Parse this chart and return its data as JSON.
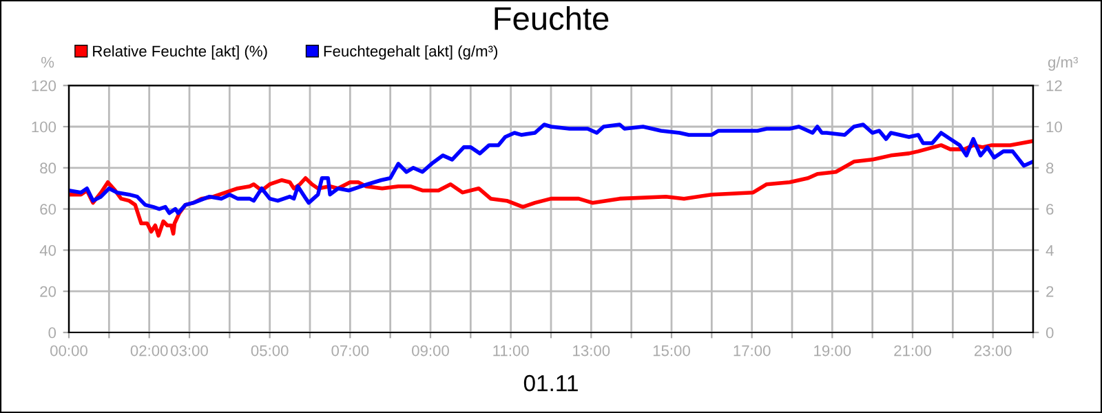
{
  "chart_data": {
    "type": "line",
    "title": "Feuchte",
    "xlabel": "01.11",
    "ylabel": "%",
    "y2label": "g/m³",
    "xlim": [
      0,
      24
    ],
    "ylim": [
      0,
      120
    ],
    "yticks": [
      0,
      20,
      40,
      60,
      80,
      100,
      120
    ],
    "y2lim": [
      0,
      12
    ],
    "y2ticks": [
      0,
      2,
      4,
      6,
      8,
      10,
      12
    ],
    "xticks": [
      {
        "value": 0,
        "label": "00:00"
      },
      {
        "value": 1,
        "label": null
      },
      {
        "value": 2,
        "label": "02:00"
      },
      {
        "value": 3,
        "label": "03:00"
      },
      {
        "value": 4,
        "label": null
      },
      {
        "value": 5,
        "label": "05:00"
      },
      {
        "value": 6,
        "label": null
      },
      {
        "value": 7,
        "label": "07:00"
      },
      {
        "value": 8,
        "label": null
      },
      {
        "value": 9,
        "label": "09:00"
      },
      {
        "value": 10,
        "label": null
      },
      {
        "value": 11,
        "label": "11:00"
      },
      {
        "value": 12,
        "label": null
      },
      {
        "value": 13,
        "label": "13:00"
      },
      {
        "value": 14,
        "label": null
      },
      {
        "value": 15,
        "label": "15:00"
      },
      {
        "value": 16,
        "label": null
      },
      {
        "value": 17,
        "label": "17:00"
      },
      {
        "value": 18,
        "label": null
      },
      {
        "value": 19,
        "label": "19:00"
      },
      {
        "value": 20,
        "label": null
      },
      {
        "value": 21,
        "label": "21:00"
      },
      {
        "value": 22,
        "label": null
      },
      {
        "value": 23,
        "label": "23:00"
      },
      {
        "value": 24,
        "label": null
      }
    ],
    "grid": true,
    "legend": "top left",
    "marker": "none",
    "line_style": "solid",
    "series": [
      {
        "name": "Relative Feuchte [akt] (%)",
        "color": "#ff0000",
        "x": [
          0,
          0.3,
          0.45,
          0.6,
          0.8,
          0.97,
          1.15,
          1.3,
          1.5,
          1.65,
          1.8,
          1.95,
          2.05,
          2.15,
          2.23,
          2.35,
          2.45,
          2.55,
          2.6,
          2.63,
          2.75,
          2.9,
          3.1,
          3.3,
          3.6,
          3.9,
          4.2,
          4.5,
          4.6,
          4.8,
          5.0,
          5.3,
          5.5,
          5.6,
          5.75,
          5.89,
          6.05,
          6.2,
          6.5,
          6.7,
          7.0,
          7.2,
          7.4,
          7.8,
          8.2,
          8.5,
          8.8,
          9.2,
          9.5,
          9.8,
          10.2,
          10.5,
          10.9,
          11.3,
          11.6,
          12.0,
          12.69,
          13.03,
          13.71,
          14.86,
          15.31,
          16.0,
          17.03,
          17.37,
          17.94,
          18.4,
          18.63,
          19.09,
          19.54,
          20.0,
          20.46,
          20.91,
          21.14,
          21.71,
          21.94,
          22.29,
          22.51,
          22.74,
          22.97,
          23.43,
          24.0
        ],
        "values": [
          67,
          67,
          69,
          63,
          68,
          73,
          69,
          65,
          64,
          62,
          53,
          53,
          49,
          52,
          47,
          54,
          52,
          52,
          48,
          53,
          58,
          62,
          63,
          65,
          66,
          68,
          70,
          71,
          72,
          69,
          72,
          74,
          73,
          70,
          72,
          75,
          72,
          70,
          71,
          70,
          73,
          73,
          71,
          70,
          71,
          71,
          69,
          69,
          72,
          68,
          70,
          65,
          64,
          61,
          63,
          65,
          65,
          63,
          65,
          66,
          65,
          67,
          68,
          72,
          73,
          75,
          77,
          78,
          83,
          84,
          86,
          87,
          88,
          91,
          89,
          89,
          91,
          90,
          91,
          91,
          93
        ]
      },
      {
        "name": "Feuchtegehalt [akt] (g/m³)",
        "color": "#0000ff",
        "axis": "y2",
        "x": [
          0,
          0.3,
          0.45,
          0.6,
          0.8,
          1.0,
          1.2,
          1.5,
          1.7,
          1.9,
          2.1,
          2.25,
          2.4,
          2.5,
          2.65,
          2.72,
          2.9,
          3.1,
          3.5,
          3.8,
          4.0,
          4.2,
          4.5,
          4.6,
          4.8,
          5.0,
          5.2,
          5.5,
          5.6,
          5.7,
          5.9,
          5.97,
          6.2,
          6.3,
          6.45,
          6.5,
          6.7,
          6.97,
          7.43,
          7.77,
          8.0,
          8.2,
          8.4,
          8.57,
          8.8,
          9.03,
          9.31,
          9.54,
          9.83,
          10.0,
          10.23,
          10.46,
          10.69,
          10.86,
          11.09,
          11.26,
          11.6,
          11.83,
          12.0,
          12.46,
          12.91,
          13.14,
          13.31,
          13.71,
          13.83,
          14.29,
          14.74,
          15.2,
          15.43,
          16.0,
          16.17,
          16.57,
          17.14,
          17.37,
          17.94,
          18.17,
          18.51,
          18.63,
          18.74,
          18.86,
          19.31,
          19.54,
          19.77,
          20.0,
          20.17,
          20.34,
          20.46,
          20.91,
          21.14,
          21.26,
          21.49,
          21.71,
          21.94,
          22.17,
          22.34,
          22.51,
          22.69,
          22.86,
          23.03,
          23.26,
          23.49,
          23.77,
          24.0
        ],
        "values": [
          6.9,
          6.8,
          7.0,
          6.4,
          6.6,
          7.0,
          6.8,
          6.7,
          6.6,
          6.2,
          6.1,
          6.0,
          6.1,
          5.8,
          6.0,
          5.8,
          6.2,
          6.3,
          6.6,
          6.5,
          6.7,
          6.5,
          6.5,
          6.4,
          7.0,
          6.5,
          6.4,
          6.6,
          6.5,
          7.1,
          6.5,
          6.3,
          6.7,
          7.5,
          7.5,
          6.7,
          7.0,
          6.9,
          7.2,
          7.4,
          7.5,
          8.2,
          7.8,
          8.0,
          7.8,
          8.2,
          8.6,
          8.4,
          9.0,
          9.0,
          8.7,
          9.1,
          9.1,
          9.5,
          9.7,
          9.6,
          9.7,
          10.1,
          10.0,
          9.9,
          9.9,
          9.7,
          10.0,
          10.1,
          9.9,
          10.0,
          9.8,
          9.7,
          9.6,
          9.6,
          9.8,
          9.8,
          9.8,
          9.9,
          9.9,
          10.0,
          9.7,
          10.0,
          9.7,
          9.7,
          9.6,
          10.0,
          10.1,
          9.7,
          9.8,
          9.4,
          9.7,
          9.5,
          9.6,
          9.2,
          9.2,
          9.7,
          9.4,
          9.1,
          8.6,
          9.4,
          8.6,
          9.0,
          8.5,
          8.8,
          8.8,
          8.1,
          8.3
        ]
      }
    ]
  }
}
